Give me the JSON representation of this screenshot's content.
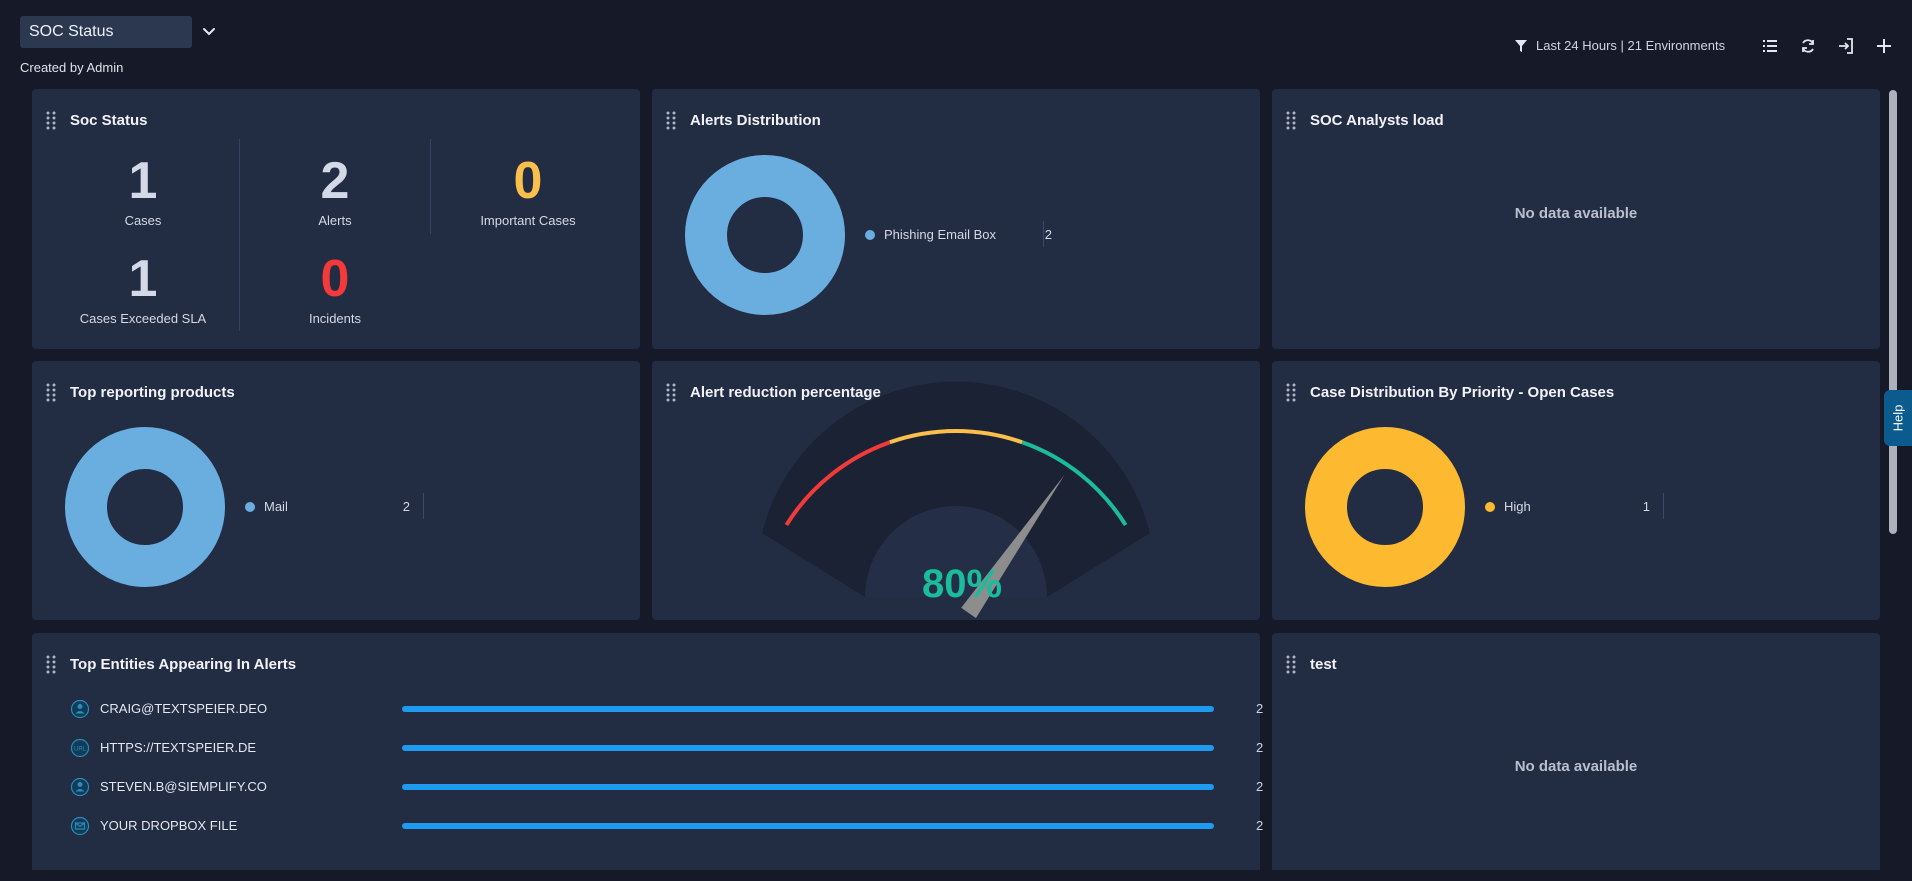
{
  "header": {
    "dashboard_name": "SOC Status",
    "created_by": "Created by Admin",
    "filter_text": "Last 24 Hours | 21 Environments"
  },
  "widgets": {
    "soc_status": {
      "title": "Soc Status",
      "stats": [
        {
          "value": "1",
          "label": "Cases",
          "color": "#d4d9e8"
        },
        {
          "value": "2",
          "label": "Alerts",
          "color": "#d4d9e8"
        },
        {
          "value": "0",
          "label": "Important Cases",
          "color": "#fbbf4c"
        },
        {
          "value": "1",
          "label": "Cases Exceeded SLA",
          "color": "#d4d9e8"
        },
        {
          "value": "0",
          "label": "Incidents",
          "color": "#f23a3a"
        }
      ]
    },
    "alerts_distribution": {
      "title": "Alerts Distribution",
      "legend": [
        {
          "label": "Phishing Email Box",
          "value": "2",
          "color": "#6aaee0"
        }
      ]
    },
    "soc_analysts_load": {
      "title": "SOC Analysts load",
      "empty_text": "No data available"
    },
    "top_reporting_products": {
      "title": "Top reporting products",
      "legend": [
        {
          "label": "Mail",
          "value": "2",
          "color": "#6aaee0"
        }
      ]
    },
    "alert_reduction": {
      "title": "Alert reduction percentage",
      "value_text": "80%",
      "value": 80,
      "color": "#1abc9c"
    },
    "case_distribution": {
      "title": "Case Distribution By Priority - Open Cases",
      "legend": [
        {
          "label": "High",
          "value": "1",
          "color": "#fdb92f"
        }
      ]
    },
    "top_entities": {
      "title": "Top Entities Appearing In Alerts",
      "rows": [
        {
          "label": "CRAIG@TEXTSPEIER.DEO",
          "value": "2",
          "icon": "user-icon"
        },
        {
          "label": "HTTPS://TEXTSPEIER.DE",
          "value": "2",
          "icon": "url-icon"
        },
        {
          "label": "STEVEN.B@SIEMPLIFY.CO",
          "value": "2",
          "icon": "user-icon"
        },
        {
          "label": "YOUR DROPBOX FILE",
          "value": "2",
          "icon": "email-subject-icon"
        }
      ]
    },
    "test": {
      "title": "test",
      "empty_text": "No data available"
    }
  },
  "help": {
    "label": "Help"
  }
}
